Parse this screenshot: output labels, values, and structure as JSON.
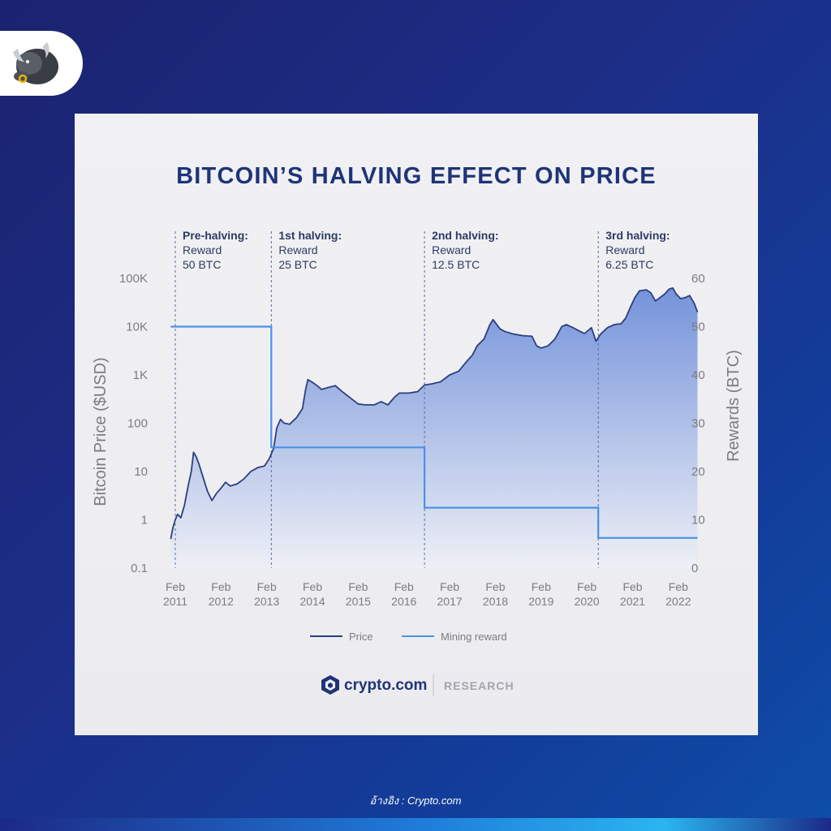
{
  "page": {
    "reference_text": "อ้างอิง : Crypto.com"
  },
  "brand": {
    "logo_text": "crypto.com",
    "divider_text": "RESEARCH"
  },
  "colors": {
    "title": "#1f3478",
    "price_line": "#2c3f7f",
    "price_fill_top": "#6f8fd9",
    "price_fill_bottom": "#eef0f6",
    "reward_line": "#4a90e8",
    "axis_text": "#7b7b83",
    "annotation": "#2c3a63"
  },
  "chart_data": {
    "type": "line",
    "title": "BITCOIN’S HALVING EFFECT ON PRICE",
    "ylabel": "Bitcoin Price ($USD)",
    "ylabel_right": "Rewards (BTC)",
    "y_scale": "log",
    "ylim": [
      0.1,
      100000
    ],
    "ylim_right": [
      0,
      60
    ],
    "yticks": [
      "100K",
      "10K",
      "1K",
      "100",
      "10",
      "1",
      "0.1"
    ],
    "yticks_right": [
      "60",
      "50",
      "40",
      "30",
      "20",
      "10",
      "0"
    ],
    "xticks": [
      {
        "month": "Feb",
        "year": "2011"
      },
      {
        "month": "Feb",
        "year": "2012"
      },
      {
        "month": "Feb",
        "year": "2013"
      },
      {
        "month": "Feb",
        "year": "2014"
      },
      {
        "month": "Feb",
        "year": "2015"
      },
      {
        "month": "Feb",
        "year": "2016"
      },
      {
        "month": "Feb",
        "year": "2017"
      },
      {
        "month": "Feb",
        "year": "2018"
      },
      {
        "month": "Feb",
        "year": "2019"
      },
      {
        "month": "Feb",
        "year": "2020"
      },
      {
        "month": "Feb",
        "year": "2021"
      },
      {
        "month": "Feb",
        "year": "2022"
      }
    ],
    "legend": [
      {
        "label": "Price",
        "series": "price"
      },
      {
        "label": "Mining reward",
        "series": "reward"
      }
    ],
    "halvings": [
      {
        "x": 2011.0,
        "line1": "Pre-halving:",
        "line2": "Reward",
        "line3": "50 BTC"
      },
      {
        "x": 2013.1,
        "line1": "1st halving:",
        "line2": "Reward",
        "line3": "25 BTC"
      },
      {
        "x": 2016.45,
        "line1": "2nd halving:",
        "line2": "Reward",
        "line3": "12.5 BTC"
      },
      {
        "x": 2020.25,
        "line1": "3rd halving:",
        "line2": "Reward",
        "line3": "6.25 BTC"
      }
    ],
    "series": [
      {
        "name": "Price",
        "key": "price",
        "points": [
          [
            2010.9,
            0.4
          ],
          [
            2010.95,
            0.7
          ],
          [
            2011.0,
            1.0
          ],
          [
            2011.05,
            1.3
          ],
          [
            2011.12,
            1.1
          ],
          [
            2011.2,
            2.0
          ],
          [
            2011.28,
            5.0
          ],
          [
            2011.35,
            10.0
          ],
          [
            2011.4,
            25.0
          ],
          [
            2011.46,
            20.0
          ],
          [
            2011.52,
            14.0
          ],
          [
            2011.6,
            8.0
          ],
          [
            2011.7,
            4.0
          ],
          [
            2011.8,
            2.5
          ],
          [
            2011.9,
            3.5
          ],
          [
            2012.0,
            4.5
          ],
          [
            2012.1,
            6.0
          ],
          [
            2012.2,
            5.0
          ],
          [
            2012.35,
            5.5
          ],
          [
            2012.5,
            7.0
          ],
          [
            2012.65,
            10.0
          ],
          [
            2012.8,
            12.0
          ],
          [
            2012.95,
            13.0
          ],
          [
            2013.05,
            18.0
          ],
          [
            2013.15,
            30.0
          ],
          [
            2013.22,
            80.0
          ],
          [
            2013.3,
            120.0
          ],
          [
            2013.38,
            100.0
          ],
          [
            2013.5,
            95.0
          ],
          [
            2013.65,
            130.0
          ],
          [
            2013.78,
            200.0
          ],
          [
            2013.85,
            500.0
          ],
          [
            2013.9,
            800.0
          ],
          [
            2014.0,
            700.0
          ],
          [
            2014.1,
            600.0
          ],
          [
            2014.2,
            500.0
          ],
          [
            2014.35,
            550.0
          ],
          [
            2014.5,
            600.0
          ],
          [
            2014.65,
            450.0
          ],
          [
            2014.8,
            350.0
          ],
          [
            2015.0,
            250.0
          ],
          [
            2015.15,
            240.0
          ],
          [
            2015.35,
            240.0
          ],
          [
            2015.5,
            280.0
          ],
          [
            2015.65,
            240.0
          ],
          [
            2015.8,
            350.0
          ],
          [
            2015.9,
            420.0
          ],
          [
            2016.1,
            420.0
          ],
          [
            2016.3,
            450.0
          ],
          [
            2016.45,
            620.0
          ],
          [
            2016.6,
            650.0
          ],
          [
            2016.8,
            720.0
          ],
          [
            2017.0,
            1000.0
          ],
          [
            2017.2,
            1200.0
          ],
          [
            2017.35,
            1800.0
          ],
          [
            2017.5,
            2600.0
          ],
          [
            2017.6,
            4000.0
          ],
          [
            2017.75,
            5500.0
          ],
          [
            2017.88,
            11000.0
          ],
          [
            2017.95,
            14000.0
          ],
          [
            2018.1,
            9000.0
          ],
          [
            2018.2,
            8000.0
          ],
          [
            2018.4,
            7000.0
          ],
          [
            2018.6,
            6500.0
          ],
          [
            2018.8,
            6300.0
          ],
          [
            2018.9,
            4000.0
          ],
          [
            2019.0,
            3600.0
          ],
          [
            2019.15,
            4000.0
          ],
          [
            2019.3,
            5500.0
          ],
          [
            2019.45,
            10000.0
          ],
          [
            2019.55,
            11000.0
          ],
          [
            2019.7,
            9500.0
          ],
          [
            2019.85,
            8000.0
          ],
          [
            2019.95,
            7200.0
          ],
          [
            2020.1,
            9500.0
          ],
          [
            2020.2,
            5000.0
          ],
          [
            2020.3,
            7000.0
          ],
          [
            2020.45,
            9500.0
          ],
          [
            2020.6,
            11000.0
          ],
          [
            2020.75,
            11500.0
          ],
          [
            2020.85,
            15000.0
          ],
          [
            2020.95,
            25000.0
          ],
          [
            2021.05,
            40000.0
          ],
          [
            2021.15,
            55000.0
          ],
          [
            2021.3,
            58000.0
          ],
          [
            2021.4,
            50000.0
          ],
          [
            2021.5,
            34000.0
          ],
          [
            2021.6,
            40000.0
          ],
          [
            2021.7,
            47000.0
          ],
          [
            2021.8,
            60000.0
          ],
          [
            2021.88,
            63000.0
          ],
          [
            2021.95,
            48000.0
          ],
          [
            2022.05,
            38000.0
          ],
          [
            2022.15,
            40000.0
          ],
          [
            2022.25,
            44000.0
          ],
          [
            2022.35,
            30000.0
          ],
          [
            2022.42,
            20000.0
          ]
        ]
      },
      {
        "name": "Mining reward",
        "key": "reward",
        "points": [
          [
            2010.9,
            50
          ],
          [
            2013.1,
            50
          ],
          [
            2013.1,
            25
          ],
          [
            2016.45,
            25
          ],
          [
            2016.45,
            12.5
          ],
          [
            2020.25,
            12.5
          ],
          [
            2020.25,
            6.25
          ],
          [
            2022.42,
            6.25
          ]
        ]
      }
    ]
  }
}
